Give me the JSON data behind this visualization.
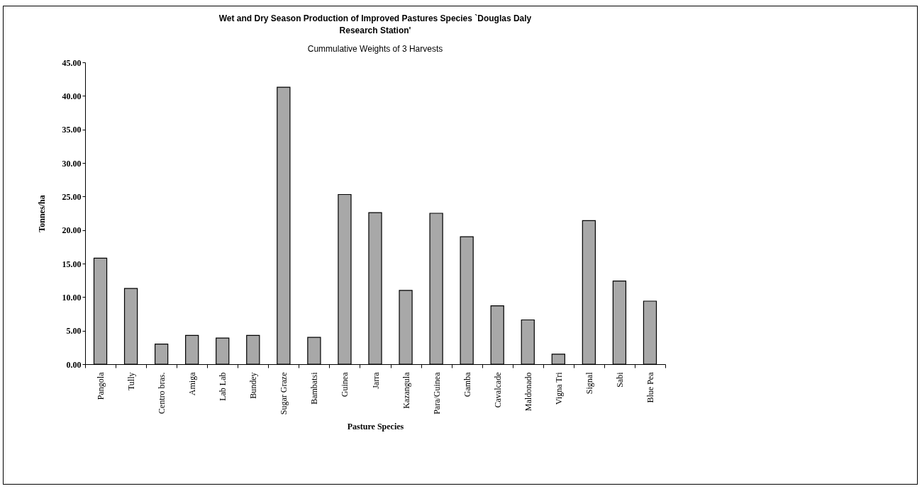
{
  "chart_data": {
    "type": "bar",
    "title": [
      "Wet and Dry Season Production of Improved Pastures Species `Douglas Daly",
      "Research Station'"
    ],
    "subtitle": "Cummulative Weights of 3 Harvests",
    "xlabel": "Pasture Species",
    "ylabel": "Tonnes/ha",
    "categories": [
      "Pangola",
      "Tully",
      "Centro  bras.",
      "Amiga",
      "Lab Lab",
      "Bundey",
      "Sugar Graze",
      "Bambatsi",
      "Guinea",
      "Jarra",
      "Kazangula",
      "Para/Guinea",
      "Gamba",
      "Cavalcade",
      "Maldonado",
      "Vigna Tri",
      "Signal",
      "Sabi",
      "Blue Pea"
    ],
    "values": [
      15.8,
      11.3,
      3.0,
      4.3,
      3.9,
      4.3,
      41.3,
      4.0,
      25.3,
      22.6,
      11.0,
      22.5,
      19.0,
      8.7,
      6.6,
      1.5,
      21.4,
      12.4,
      9.4
    ],
    "color": "#a8a8a8",
    "ylim": [
      0,
      45
    ],
    "yticks": [
      {
        "value": 0,
        "label": "0.00"
      },
      {
        "value": 5,
        "label": "5.00"
      },
      {
        "value": 10,
        "label": "10.00"
      },
      {
        "value": 15,
        "label": "15.00"
      },
      {
        "value": 20,
        "label": "20.00"
      },
      {
        "value": 25,
        "label": "25.00"
      },
      {
        "value": 30,
        "label": "30.00"
      },
      {
        "value": 35,
        "label": "35.00"
      },
      {
        "value": 40,
        "label": "40.00"
      },
      {
        "value": 45,
        "label": "45.00"
      }
    ],
    "grid": false
  }
}
